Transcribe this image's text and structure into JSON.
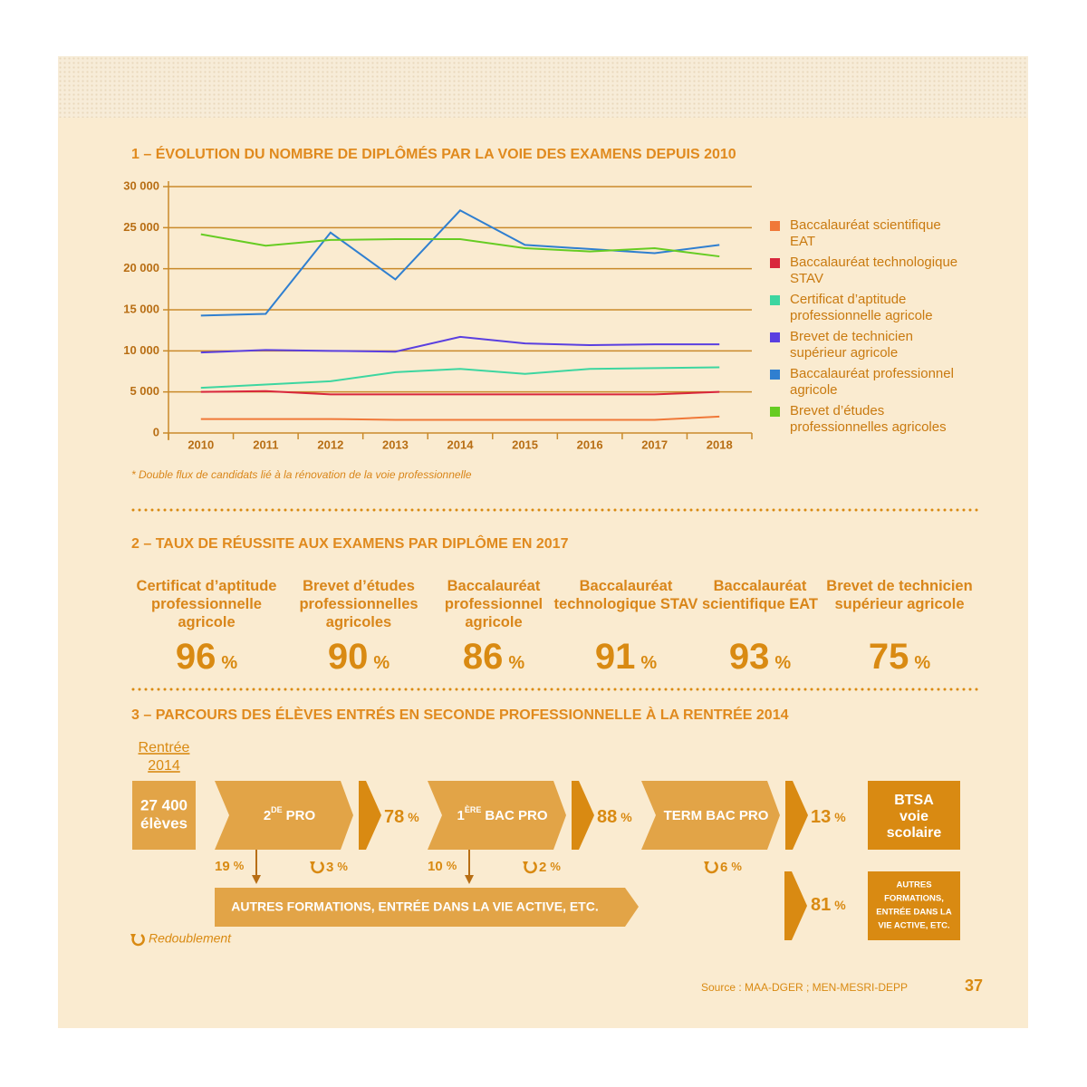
{
  "chart_data": {
    "type": "line",
    "title": "1 – ÉVOLUTION DU NOMBRE DE DIPLÔMÉS PAR LA VOIE DES EXAMENS DEPUIS 2010",
    "note": "* Double flux de candidats lié à la rénovation de la voie professionnelle",
    "categories": [
      "2010",
      "2011",
      "2012",
      "2013",
      "2014",
      "2015",
      "2016",
      "2017",
      "2018"
    ],
    "series": [
      {
        "name": "Baccalauréat scientifique EAT",
        "color": "#f07838",
        "values": [
          1700,
          1700,
          1700,
          1600,
          1600,
          1600,
          1600,
          1600,
          2000
        ]
      },
      {
        "name": "Baccalauréat technologique STAV",
        "color": "#d9263c",
        "values": [
          5000,
          5100,
          4700,
          4700,
          4700,
          4700,
          4700,
          4700,
          5000
        ]
      },
      {
        "name": "Certificat d’aptitude professionnelle agricole",
        "color": "#3dd6a0",
        "values": [
          5500,
          5900,
          6300,
          7400,
          7800,
          7200,
          7800,
          7900,
          8000
        ]
      },
      {
        "name": "Brevet de technicien supérieur agricole",
        "color": "#5a3fe0",
        "values": [
          9800,
          10100,
          10000,
          9900,
          11700,
          10900,
          10700,
          10800,
          10800
        ]
      },
      {
        "name": "Baccalauréat professionnel agricole",
        "color": "#2f7fd0",
        "values": [
          14300,
          14500,
          24400,
          18700,
          27100,
          22900,
          22400,
          21900,
          22900
        ]
      },
      {
        "name": "Brevet d’études professionnelles agricoles",
        "color": "#66cc22",
        "values": [
          24200,
          22800,
          23500,
          23600,
          23600,
          22500,
          22100,
          22500,
          21500
        ]
      }
    ],
    "ylim": [
      0,
      30000
    ],
    "yticks": [
      0,
      {
        "value": 5000,
        "label": "5 000"
      },
      {
        "value": 10000,
        "label": "10 000"
      },
      {
        "value": 15000,
        "label": "15 000"
      },
      {
        "value": 20000,
        "label": "20 000"
      },
      {
        "value": 25000,
        "label": "25 000"
      },
      {
        "value": 30000,
        "label": "30 000"
      }
    ],
    "grid": true
  },
  "section2": {
    "title": "2 – TAUX DE RÉUSSITE AUX EXAMENS PAR DIPLÔME EN 2017",
    "unit": "%",
    "items": [
      {
        "label": "Certificat d’aptitude professionnelle agricole",
        "value": 96
      },
      {
        "label": "Brevet d’études professionnelles agricoles",
        "value": 90
      },
      {
        "label": "Baccalauréat professionnel agricole",
        "value": 86
      },
      {
        "label": "Baccalauréat technologique STAV",
        "value": 91
      },
      {
        "label": "Baccalauréat scientifique EAT",
        "value": 93
      },
      {
        "label": "Brevet de technicien supérieur agricole",
        "value": 75
      }
    ]
  },
  "section3": {
    "title": "3 – PARCOURS DES ÉLÈVES ENTRÉS EN SECONDE PROFESSIONNELLE À LA RENTRÉE 2014",
    "unit": "%",
    "start_label": [
      "Rentrée",
      "2014"
    ],
    "start_count": [
      "27 400",
      "élèves"
    ],
    "stages": [
      {
        "number": "2",
        "sup": "DE",
        "name": "PRO",
        "pass": 78,
        "exit": 19,
        "repeat": 3
      },
      {
        "number": "1",
        "sup": "ÈRE",
        "name": "BAC PRO",
        "pass": 88,
        "exit": 10,
        "repeat": 2
      },
      {
        "name": "TERM BAC PRO",
        "pass": 13,
        "repeat": 6
      }
    ],
    "other_band": "AUTRES FORMATIONS, ENTRÉE DANS LA VIE ACTIVE, ETC.",
    "final_other": 81,
    "btsa": [
      "BTSA",
      "voie",
      "scolaire"
    ],
    "other_box": [
      "AUTRES",
      "FORMATIONS,",
      "ENTRÉE DANS LA",
      "VIE ACTIVE, ETC."
    ],
    "legend_repeat": "Redoublement"
  },
  "footer": {
    "source": "Source : MAA-DGER ; MEN-MESRI-DEPP",
    "page": "37"
  }
}
